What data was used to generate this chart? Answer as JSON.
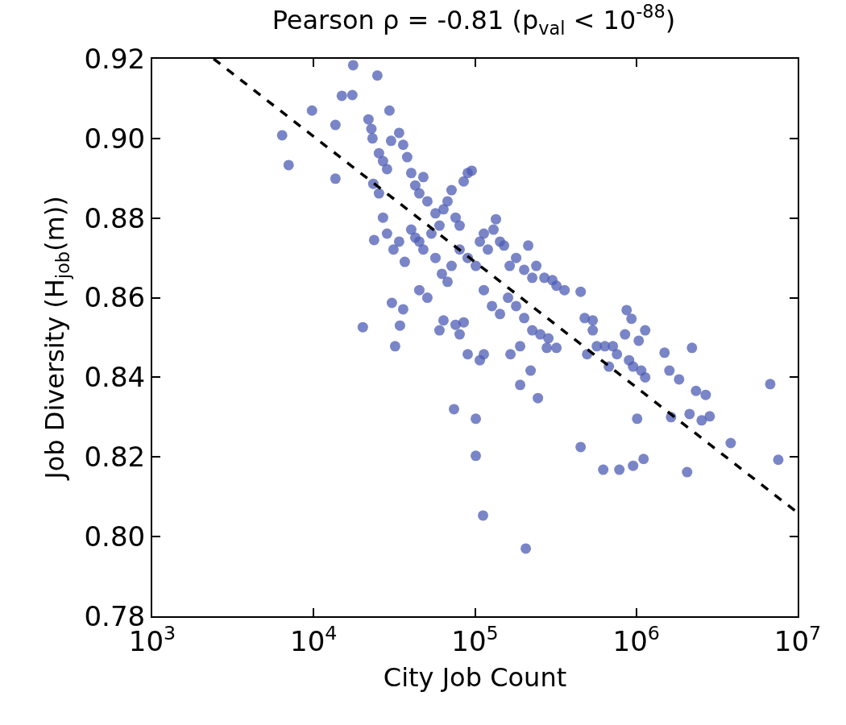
{
  "chart_data": {
    "type": "scatter",
    "title": "Pearson ρ = -0.81 (p$_{val}$ < 10$^{-88}$)",
    "xlabel": "City Job Count",
    "ylabel": "Job Diversity (H$_{job}$(m))",
    "log": "x",
    "marker": "circle",
    "xlim": [
      1000,
      10000000
    ],
    "xticks": [
      {
        "value": 1000,
        "label": "10$^{3}$"
      },
      {
        "value": 10000,
        "label": "10$^{4}$"
      },
      {
        "value": 100000,
        "label": "10$^{5}$"
      },
      {
        "value": 1000000,
        "label": "10$^{6}$"
      },
      {
        "value": 10000000,
        "label": "10$^{7}$"
      }
    ],
    "ylim": [
      0.78,
      0.92
    ],
    "yticks": [
      0.78,
      {
        "value": 0.8,
        "label": "0.80"
      },
      0.82,
      0.84,
      0.86,
      0.88,
      {
        "value": 0.9,
        "label": "0.90"
      },
      0.92
    ],
    "series": [
      {
        "color": "#4c5cb4",
        "x": [
          6380,
          7000,
          9770,
          13650,
          13650,
          14960,
          17380,
          17580,
          24830,
          20180,
          21880,
          22800,
          23170,
          23440,
          23710,
          30550,
          31990,
          34280,
          35890,
          29510,
          25410,
          26920,
          28510,
          30200,
          33880,
          35890,
          38020,
          40270,
          42660,
          45190,
          47860,
          50700,
          25410,
          26920,
          28510,
          31260,
          33880,
          36730,
          40270,
          42660,
          45190,
          47860,
          53700,
          56890,
          60260,
          63830,
          67610,
          75860,
          80350,
          85110,
          90160,
          95500,
          71610,
          56890,
          62370,
          67610,
          71610,
          80350,
          90160,
          101200,
          107200,
          113500,
          120200,
          130300,
          134900,
          142900,
          151400,
          164100,
          179900,
          201800,
          213800,
          226500,
          239900,
          269200,
          302000,
          319900,
          358900,
          451900,
          478600,
          537000,
          537000,
          113500,
          127400,
          142900,
          160300,
          179900,
          201800,
          226500,
          254100,
          285100,
          319900,
          278600,
          75860,
          85110,
          80350,
          60260,
          63830,
          50700,
          45190,
          90160,
          107200,
          113500,
          166000,
          190500,
          221300,
          190500,
          245500,
          74130,
          101200,
          101200,
          112200,
          206500,
          451900,
          495500,
          568900,
          638300,
          716100,
          758600,
          623700,
          785200,
          955000,
          1109000,
          871000,
          933300,
          1035000,
          901600,
          1072000,
          1135000,
          955000,
          1135000,
          1012000,
          1496000,
          1603000,
          1841000,
          2213000,
          1641000,
          2065000,
          2138000,
          2344000,
          2541000,
          2692000,
          2851000,
          3846000,
          6761000,
          7586000,
          851100,
          676100
        ],
        "values": [
          0.9008,
          0.8933,
          0.907,
          0.8899,
          0.9034,
          0.9107,
          0.9109,
          0.9184,
          0.9158,
          0.8526,
          0.9048,
          0.9024,
          0.9,
          0.8886,
          0.8745,
          0.8587,
          0.8478,
          0.853,
          0.8571,
          0.907,
          0.8963,
          0.8943,
          0.8923,
          0.8994,
          0.9014,
          0.8984,
          0.8953,
          0.8913,
          0.8882,
          0.8862,
          0.8903,
          0.8842,
          0.8862,
          0.8801,
          0.8761,
          0.8721,
          0.8741,
          0.869,
          0.8771,
          0.8751,
          0.8741,
          0.8721,
          0.8761,
          0.8812,
          0.8781,
          0.8822,
          0.8842,
          0.8801,
          0.8781,
          0.8892,
          0.8913,
          0.8919,
          0.887,
          0.87,
          0.866,
          0.864,
          0.868,
          0.8721,
          0.87,
          0.868,
          0.8741,
          0.8761,
          0.8721,
          0.8771,
          0.8797,
          0.8741,
          0.8731,
          0.868,
          0.87,
          0.867,
          0.8731,
          0.865,
          0.868,
          0.865,
          0.8644,
          0.863,
          0.8619,
          0.8615,
          0.8549,
          0.8543,
          0.8518,
          0.8619,
          0.8579,
          0.8559,
          0.86,
          0.8579,
          0.8549,
          0.8518,
          0.8508,
          0.8498,
          0.8474,
          0.8474,
          0.8532,
          0.8538,
          0.8508,
          0.8518,
          0.8543,
          0.86,
          0.8619,
          0.8458,
          0.8443,
          0.8458,
          0.8458,
          0.8478,
          0.8417,
          0.8381,
          0.8348,
          0.832,
          0.8296,
          0.8203,
          0.8053,
          0.797,
          0.8225,
          0.8458,
          0.8478,
          0.8478,
          0.8478,
          0.8458,
          0.8168,
          0.8168,
          0.8178,
          0.8195,
          0.8569,
          0.8547,
          0.8492,
          0.8443,
          0.8417,
          0.84,
          0.8427,
          0.8518,
          0.8296,
          0.8462,
          0.8417,
          0.8395,
          0.8474,
          0.83,
          0.8162,
          0.8308,
          0.8366,
          0.8292,
          0.8356,
          0.8302,
          0.8235,
          0.8383,
          0.8193,
          0.8508,
          0.8427
        ]
      },
      {
        "type": "line",
        "color": "#000000",
        "line_style": "dashed",
        "marker": "none",
        "x": [
          2400,
          10000000
        ],
        "values": [
          0.92,
          0.806
        ]
      }
    ]
  }
}
